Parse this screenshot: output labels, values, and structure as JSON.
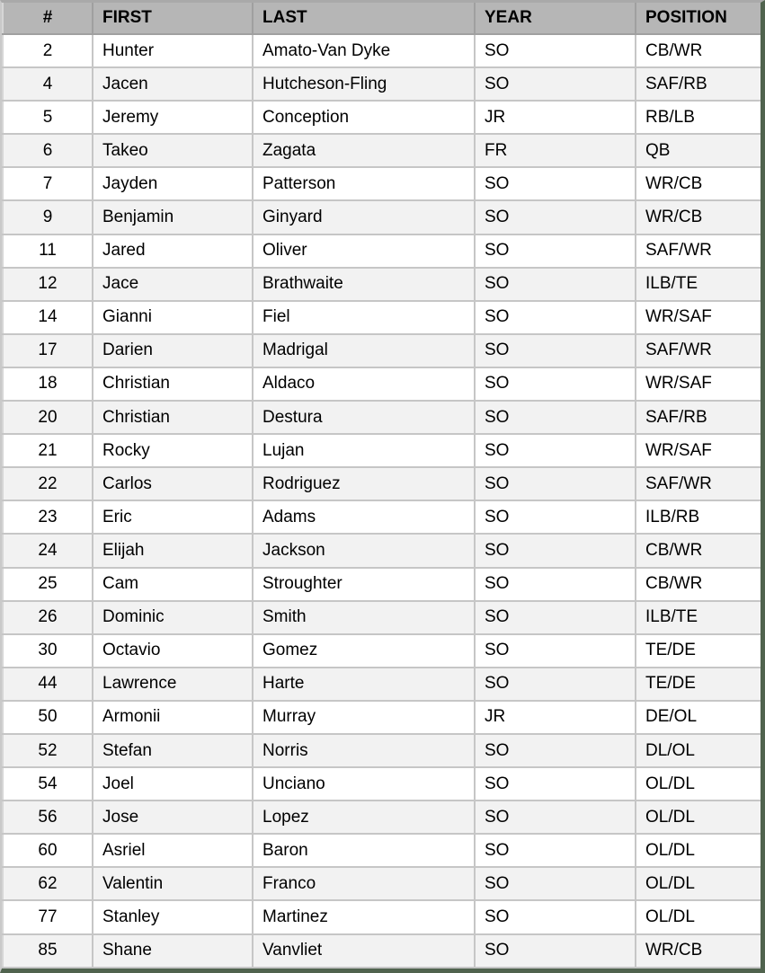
{
  "table": {
    "columns": [
      {
        "key": "num",
        "label": "#"
      },
      {
        "key": "first",
        "label": "FIRST"
      },
      {
        "key": "last",
        "label": "LAST"
      },
      {
        "key": "year",
        "label": "YEAR"
      },
      {
        "key": "position",
        "label": "POSITION"
      }
    ],
    "rows": [
      {
        "num": "2",
        "first": "Hunter",
        "last": "Amato-Van Dyke",
        "year": "SO",
        "position": "CB/WR"
      },
      {
        "num": "4",
        "first": "Jacen",
        "last": "Hutcheson-Fling",
        "year": "SO",
        "position": "SAF/RB"
      },
      {
        "num": "5",
        "first": "Jeremy",
        "last": "Conception",
        "year": "JR",
        "position": "RB/LB"
      },
      {
        "num": "6",
        "first": "Takeo",
        "last": "Zagata",
        "year": "FR",
        "position": "QB"
      },
      {
        "num": "7",
        "first": "Jayden",
        "last": "Patterson",
        "year": "SO",
        "position": "WR/CB"
      },
      {
        "num": "9",
        "first": "Benjamin",
        "last": "Ginyard",
        "year": "SO",
        "position": "WR/CB"
      },
      {
        "num": "11",
        "first": "Jared",
        "last": "Oliver",
        "year": "SO",
        "position": "SAF/WR"
      },
      {
        "num": "12",
        "first": "Jace",
        "last": "Brathwaite",
        "year": "SO",
        "position": "ILB/TE"
      },
      {
        "num": "14",
        "first": "Gianni",
        "last": "Fiel",
        "year": "SO",
        "position": "WR/SAF"
      },
      {
        "num": "17",
        "first": "Darien",
        "last": "Madrigal",
        "year": "SO",
        "position": "SAF/WR"
      },
      {
        "num": "18",
        "first": "Christian",
        "last": "Aldaco",
        "year": "SO",
        "position": "WR/SAF"
      },
      {
        "num": "20",
        "first": "Christian",
        "last": "Destura",
        "year": "SO",
        "position": "SAF/RB"
      },
      {
        "num": "21",
        "first": "Rocky",
        "last": "Lujan",
        "year": "SO",
        "position": "WR/SAF"
      },
      {
        "num": "22",
        "first": "Carlos",
        "last": "Rodriguez",
        "year": "SO",
        "position": "SAF/WR"
      },
      {
        "num": "23",
        "first": "Eric",
        "last": "Adams",
        "year": "SO",
        "position": "ILB/RB"
      },
      {
        "num": "24",
        "first": "Elijah",
        "last": "Jackson",
        "year": "SO",
        "position": "CB/WR"
      },
      {
        "num": "25",
        "first": "Cam",
        "last": "Stroughter",
        "year": "SO",
        "position": "CB/WR"
      },
      {
        "num": "26",
        "first": "Dominic",
        "last": "Smith",
        "year": "SO",
        "position": "ILB/TE"
      },
      {
        "num": "30",
        "first": "Octavio",
        "last": "Gomez",
        "year": "SO",
        "position": "TE/DE"
      },
      {
        "num": "44",
        "first": "Lawrence",
        "last": "Harte",
        "year": "SO",
        "position": "TE/DE"
      },
      {
        "num": "50",
        "first": "Armonii",
        "last": "Murray",
        "year": "JR",
        "position": "DE/OL"
      },
      {
        "num": "52",
        "first": "Stefan",
        "last": "Norris",
        "year": "SO",
        "position": "DL/OL"
      },
      {
        "num": "54",
        "first": "Joel",
        "last": "Unciano",
        "year": "SO",
        "position": "OL/DL"
      },
      {
        "num": "56",
        "first": "Jose",
        "last": "Lopez",
        "year": "SO",
        "position": "OL/DL"
      },
      {
        "num": "60",
        "first": "Asriel",
        "last": "Baron",
        "year": "SO",
        "position": "OL/DL"
      },
      {
        "num": "62",
        "first": "Valentin",
        "last": "Franco",
        "year": "SO",
        "position": "OL/DL"
      },
      {
        "num": "77",
        "first": "Stanley",
        "last": "Martinez",
        "year": "SO",
        "position": "OL/DL"
      },
      {
        "num": "85",
        "first": "Shane",
        "last": "Vanvliet",
        "year": "SO",
        "position": "WR/CB"
      }
    ]
  },
  "colors": {
    "header_bg": "#b6b6b6",
    "row_bg": "#ffffff",
    "row_alt_bg": "#f2f2f2",
    "cell_border": "#c6c6c6",
    "header_border": "#a0a0a0",
    "outer_border_green": "#50634e",
    "outer_border_gray": "#a9a9a9",
    "text": "#000000"
  }
}
